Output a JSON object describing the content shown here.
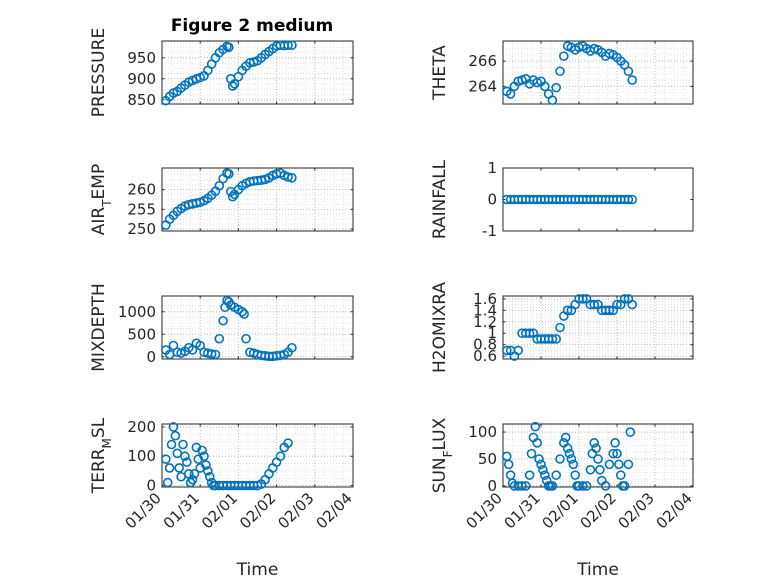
{
  "figure_title": "Figure 2 medium",
  "colors": {
    "marker": "#0072BD",
    "axis": "#262626",
    "grid": "#bdbdbd",
    "minor_grid": "#e3e3e3"
  },
  "chart_data": [
    {
      "type": "scatter",
      "ylabel": "PRESSURE",
      "xlabel": "",
      "grid": true,
      "xlim": [
        "01/30",
        "02/04"
      ],
      "ylim": [
        840,
        990
      ],
      "yticks": [
        850,
        900,
        950
      ],
      "xtick_labels": [],
      "x": [
        0.1,
        0.2,
        0.3,
        0.4,
        0.5,
        0.6,
        0.7,
        0.8,
        0.9,
        1.0,
        1.1,
        1.2,
        1.3,
        1.4,
        1.5,
        1.6,
        1.7,
        1.75,
        1.8,
        1.85,
        1.9,
        2.0,
        2.1,
        2.2,
        2.3,
        2.4,
        2.5,
        2.6,
        2.7,
        2.8,
        2.9,
        3.0,
        3.1,
        3.2,
        3.3,
        3.4
      ],
      "y": [
        848,
        858,
        866,
        870,
        878,
        885,
        892,
        896,
        900,
        903,
        907,
        920,
        935,
        950,
        962,
        970,
        977,
        975,
        900,
        883,
        888,
        905,
        920,
        930,
        938,
        940,
        943,
        950,
        958,
        965,
        972,
        978,
        980,
        979,
        980,
        980
      ]
    },
    {
      "type": "scatter",
      "ylabel": "THETA",
      "xlabel": "",
      "grid": true,
      "xlim": [
        "01/30",
        "02/04"
      ],
      "ylim": [
        262.6,
        267.6
      ],
      "yticks": [
        264,
        266
      ],
      "ytick_labels": [
        "264",
        "266"
      ],
      "xtick_labels": [],
      "x": [
        0.1,
        0.2,
        0.3,
        0.4,
        0.5,
        0.6,
        0.7,
        0.8,
        0.9,
        1.0,
        1.1,
        1.2,
        1.3,
        1.4,
        1.5,
        1.6,
        1.7,
        1.8,
        1.9,
        2.0,
        2.1,
        2.2,
        2.3,
        2.4,
        2.5,
        2.6,
        2.7,
        2.8,
        2.9,
        3.0,
        3.1,
        3.2,
        3.3,
        3.4
      ],
      "y": [
        263.6,
        263.4,
        264.0,
        264.4,
        264.5,
        264.6,
        264.2,
        264.5,
        264.3,
        264.4,
        264.0,
        263.4,
        262.9,
        263.9,
        265.2,
        266.4,
        267.2,
        267.1,
        266.9,
        267.1,
        267.2,
        267.0,
        266.8,
        267.0,
        266.9,
        266.7,
        266.4,
        266.6,
        266.5,
        266.3,
        266.0,
        265.7,
        265.2,
        264.5
      ]
    },
    {
      "type": "scatter",
      "ylabel": "AIR_TEMP",
      "xlabel": "",
      "grid": true,
      "xlim": [
        "01/30",
        "02/04"
      ],
      "ylim": [
        249.5,
        265.5
      ],
      "yticks": [
        250,
        255,
        260
      ],
      "xtick_labels": [],
      "x": [
        0.1,
        0.2,
        0.3,
        0.4,
        0.5,
        0.6,
        0.7,
        0.8,
        0.9,
        1.0,
        1.1,
        1.2,
        1.3,
        1.4,
        1.5,
        1.6,
        1.7,
        1.75,
        1.8,
        1.85,
        1.9,
        2.0,
        2.1,
        2.2,
        2.3,
        2.4,
        2.5,
        2.6,
        2.7,
        2.8,
        2.9,
        3.0,
        3.1,
        3.2,
        3.3,
        3.4
      ],
      "y": [
        251,
        252.5,
        253.5,
        254.5,
        255.2,
        255.8,
        256.2,
        256.4,
        256.6,
        256.8,
        257.2,
        257.8,
        258.6,
        259.6,
        261.0,
        262.8,
        264.2,
        264.0,
        259.5,
        258.2,
        258.8,
        260.0,
        261.0,
        261.6,
        262.0,
        262.2,
        262.3,
        262.4,
        262.6,
        263.0,
        263.6,
        264.0,
        264.2,
        263.6,
        263.2,
        263.0
      ]
    },
    {
      "type": "scatter",
      "ylabel": "RAINFALL",
      "xlabel": "",
      "grid": false,
      "xlim": [
        "01/30",
        "02/04"
      ],
      "ylim": [
        -1,
        1
      ],
      "yticks": [
        -1,
        0,
        1
      ],
      "xtick_labels": [],
      "x": [
        0.1,
        0.2,
        0.3,
        0.4,
        0.5,
        0.6,
        0.7,
        0.8,
        0.9,
        1.0,
        1.1,
        1.2,
        1.3,
        1.4,
        1.5,
        1.6,
        1.7,
        1.8,
        1.9,
        2.0,
        2.1,
        2.2,
        2.3,
        2.4,
        2.5,
        2.6,
        2.7,
        2.8,
        2.9,
        3.0,
        3.1,
        3.2,
        3.3,
        3.4
      ],
      "y": [
        0,
        0,
        0,
        0,
        0,
        0,
        0,
        0,
        0,
        0,
        0,
        0,
        0,
        0,
        0,
        0,
        0,
        0,
        0,
        0,
        0,
        0,
        0,
        0,
        0,
        0,
        0,
        0,
        0,
        0,
        0,
        0,
        0,
        0
      ]
    },
    {
      "type": "scatter",
      "ylabel": "MIXDEPTH",
      "xlabel": "",
      "grid": true,
      "xlim": [
        "01/30",
        "02/04"
      ],
      "ylim": [
        -50,
        1350
      ],
      "yticks": [
        0,
        500,
        1000
      ],
      "xtick_labels": [],
      "x": [
        0.1,
        0.2,
        0.3,
        0.4,
        0.5,
        0.6,
        0.7,
        0.8,
        0.9,
        1.0,
        1.1,
        1.2,
        1.3,
        1.4,
        1.5,
        1.6,
        1.65,
        1.7,
        1.75,
        1.8,
        1.9,
        2.0,
        2.1,
        2.15,
        2.2,
        2.3,
        2.4,
        2.5,
        2.6,
        2.7,
        2.8,
        2.9,
        3.0,
        3.1,
        3.2,
        3.3,
        3.4
      ],
      "y": [
        150,
        50,
        250,
        100,
        80,
        120,
        200,
        150,
        300,
        250,
        100,
        80,
        60,
        50,
        400,
        800,
        1100,
        1250,
        1220,
        1150,
        1100,
        1050,
        1000,
        950,
        400,
        100,
        80,
        50,
        30,
        20,
        10,
        10,
        20,
        30,
        50,
        100,
        200
      ]
    },
    {
      "type": "scatter",
      "ylabel": "H2OMIXRA",
      "xlabel": "",
      "grid": true,
      "xlim": [
        "01/30",
        "02/04"
      ],
      "ylim": [
        0.55,
        1.65
      ],
      "yticks": [
        0.6,
        0.8,
        1.0,
        1.2,
        1.4,
        1.6
      ],
      "ytick_labels": [
        "0.6",
        "0.8",
        "1",
        "1.2",
        "1.4",
        "1.6"
      ],
      "xtick_labels": [],
      "x": [
        0.1,
        0.2,
        0.3,
        0.4,
        0.5,
        0.6,
        0.7,
        0.8,
        0.9,
        1.0,
        1.1,
        1.2,
        1.3,
        1.4,
        1.5,
        1.6,
        1.7,
        1.8,
        1.9,
        2.0,
        2.1,
        2.2,
        2.3,
        2.4,
        2.5,
        2.6,
        2.7,
        2.8,
        2.9,
        3.0,
        3.1,
        3.2,
        3.3,
        3.4
      ],
      "y": [
        0.7,
        0.7,
        0.6,
        0.7,
        1.0,
        1.0,
        1.0,
        1.0,
        0.9,
        0.9,
        0.9,
        0.9,
        0.9,
        0.9,
        1.1,
        1.3,
        1.4,
        1.4,
        1.5,
        1.6,
        1.6,
        1.6,
        1.5,
        1.5,
        1.5,
        1.4,
        1.4,
        1.4,
        1.4,
        1.5,
        1.5,
        1.6,
        1.6,
        1.5
      ]
    },
    {
      "type": "scatter",
      "ylabel": "TERR_MSL",
      "xlabel": "Time",
      "grid": true,
      "xlim": [
        "01/30",
        "02/04"
      ],
      "ylim": [
        -5,
        210
      ],
      "yticks": [
        0,
        100,
        200
      ],
      "xtick_labels": [
        "01/30",
        "01/31",
        "02/01",
        "02/02",
        "02/03",
        "02/04"
      ],
      "x": [
        0.1,
        0.15,
        0.2,
        0.25,
        0.3,
        0.35,
        0.4,
        0.45,
        0.5,
        0.55,
        0.6,
        0.65,
        0.7,
        0.75,
        0.8,
        0.85,
        0.9,
        0.95,
        1.0,
        1.05,
        1.1,
        1.15,
        1.2,
        1.25,
        1.3,
        1.35,
        1.4,
        1.5,
        1.6,
        1.7,
        1.8,
        1.9,
        2.0,
        2.1,
        2.2,
        2.3,
        2.4,
        2.5,
        2.6,
        2.7,
        2.8,
        2.9,
        3.0,
        3.1,
        3.2,
        3.3
      ],
      "y": [
        90,
        10,
        60,
        140,
        200,
        170,
        110,
        60,
        30,
        140,
        100,
        80,
        40,
        10,
        20,
        40,
        130,
        90,
        60,
        120,
        100,
        70,
        50,
        30,
        10,
        0,
        0,
        0,
        0,
        0,
        0,
        0,
        0,
        0,
        0,
        0,
        0,
        0,
        5,
        20,
        40,
        60,
        80,
        100,
        130,
        145
      ]
    },
    {
      "type": "scatter",
      "ylabel": "SUN_FLUX",
      "xlabel": "Time",
      "grid": true,
      "xlim": [
        "01/30",
        "02/04"
      ],
      "ylim": [
        -2,
        115
      ],
      "yticks": [
        0,
        50,
        100
      ],
      "xtick_labels": [
        "01/30",
        "01/31",
        "02/01",
        "02/02",
        "02/03",
        "02/04"
      ],
      "x": [
        0.1,
        0.15,
        0.2,
        0.25,
        0.3,
        0.4,
        0.5,
        0.6,
        0.7,
        0.75,
        0.8,
        0.85,
        0.9,
        0.95,
        1.0,
        1.05,
        1.1,
        1.15,
        1.2,
        1.25,
        1.3,
        1.4,
        1.5,
        1.6,
        1.65,
        1.7,
        1.75,
        1.8,
        1.85,
        1.9,
        1.95,
        2.0,
        2.1,
        2.2,
        2.3,
        2.35,
        2.4,
        2.45,
        2.5,
        2.55,
        2.6,
        2.7,
        2.8,
        2.9,
        2.95,
        3.0,
        3.05,
        3.1,
        3.15,
        3.2,
        3.3,
        3.35
      ],
      "y": [
        55,
        40,
        20,
        5,
        0,
        0,
        0,
        0,
        20,
        60,
        90,
        110,
        80,
        50,
        40,
        30,
        20,
        10,
        0,
        0,
        0,
        20,
        50,
        80,
        90,
        70,
        60,
        50,
        40,
        20,
        0,
        0,
        0,
        0,
        30,
        60,
        80,
        70,
        50,
        30,
        10,
        0,
        40,
        60,
        80,
        60,
        40,
        20,
        0,
        0,
        40,
        100
      ]
    }
  ]
}
